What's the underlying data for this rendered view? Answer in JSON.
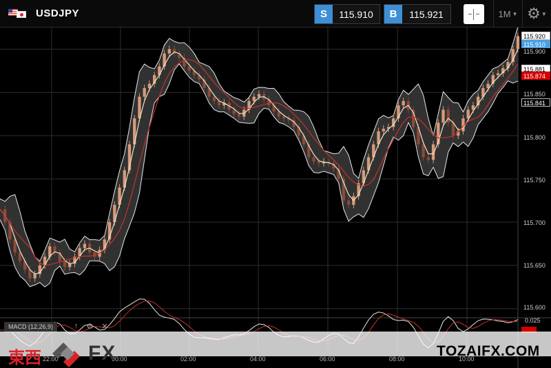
{
  "header": {
    "symbol": "USDJPY",
    "sell_tag": "S",
    "sell_price": "115.910",
    "buy_tag": "B",
    "buy_price": "115.921",
    "timeframe": "1M"
  },
  "price_axis": [
    "115.900",
    "115.850",
    "115.800",
    "115.750",
    "115.700",
    "115.650",
    "115.600"
  ],
  "badges": {
    "top": "115.920",
    "sell": "115.910",
    "b1": "115.881",
    "b2": "115.874",
    "b3": "115.841"
  },
  "macd": {
    "label": "MACD (12,26,9)",
    "scale_top": "0.025",
    "scale_mid": "0.000"
  },
  "time_axis": [
    "22:00",
    "00:00",
    "02:00",
    "04:00",
    "06:00",
    "08:00",
    "10:00"
  ],
  "watermark": {
    "brand_jp": "東西",
    "brand_fx": "FX",
    "site": "TOZAIFX.COM"
  },
  "colors": {
    "accent": "#3d8fd6",
    "price_line_red": "#d40000",
    "band": "#3a3a3a",
    "ma_red": "#c8322b"
  },
  "chart_data": {
    "type": "line",
    "ylim": [
      115.595,
      115.925
    ],
    "series": [
      {
        "name": "",
        "values": [
          115.715,
          115.7,
          115.68,
          115.665,
          115.655,
          115.645,
          115.635,
          115.64,
          115.65,
          115.66,
          115.672,
          115.665,
          115.655,
          115.648,
          115.652,
          115.66,
          115.67,
          115.675,
          115.665,
          115.66,
          115.668,
          115.68,
          115.7,
          115.72,
          115.74,
          115.76,
          115.79,
          115.82,
          115.845,
          115.855,
          115.86,
          115.87,
          115.88,
          115.895,
          115.9,
          115.895,
          115.89,
          115.88,
          115.875,
          115.87,
          115.865,
          115.855,
          115.845,
          115.84,
          115.835,
          115.838,
          115.83,
          115.825,
          115.822,
          115.83,
          115.84,
          115.845,
          115.848,
          115.842,
          115.835,
          115.828,
          115.822,
          115.82,
          115.818,
          115.81,
          115.8,
          115.79,
          115.775,
          115.77,
          115.768,
          115.77,
          115.768,
          115.762,
          115.75,
          115.725,
          115.72,
          115.73,
          115.745,
          115.76,
          115.775,
          115.79,
          115.805,
          115.808,
          115.81,
          115.82,
          115.835,
          115.84,
          115.83,
          115.81,
          115.79,
          115.775,
          115.772,
          115.79,
          115.815,
          115.83,
          115.815,
          115.8,
          115.805,
          115.82,
          115.83,
          115.835,
          115.845,
          115.855,
          115.86,
          115.87,
          115.872,
          115.878,
          115.885,
          115.9,
          115.915
        ]
      }
    ]
  }
}
